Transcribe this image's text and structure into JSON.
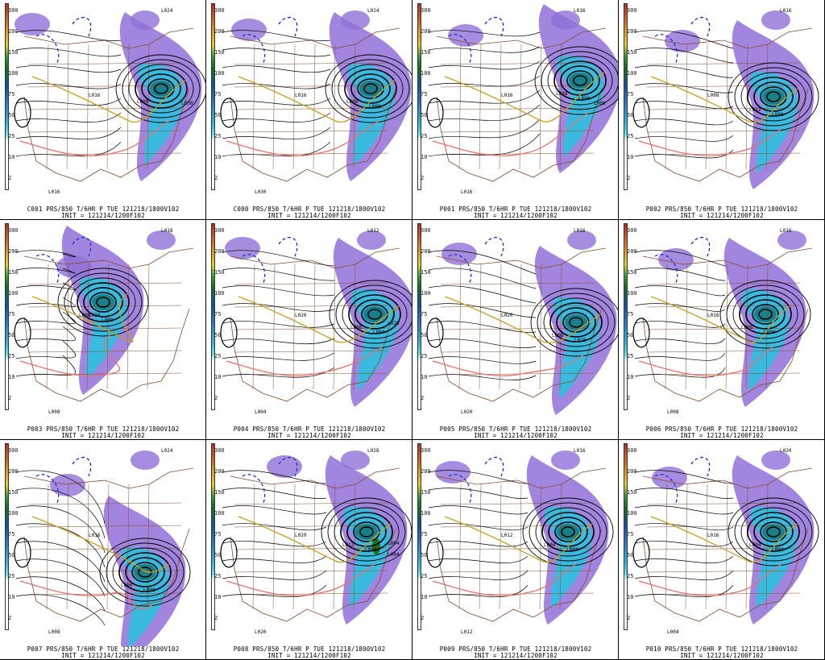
{
  "scale_ticks": [
    "300",
    "200",
    "150",
    "100",
    "75",
    "50",
    "25",
    "10",
    "2"
  ],
  "panels": [
    {
      "member": "C001",
      "title": "C001 PRS/850 T/6HR P TUE 121218/1800V102",
      "init": "INIT = 121214/1200F102",
      "lows": [
        "L008"
      ],
      "highs": [
        "L024",
        "L016",
        "L016",
        "L030"
      ]
    },
    {
      "member": "C000",
      "title": "C000 PRS/850 T/6HR P TUE 121218/1800V102",
      "init": "INIT = 121214/1200F102",
      "lows": [
        "L008",
        "L008"
      ],
      "highs": [
        "L024",
        "L016",
        "L030"
      ]
    },
    {
      "member": "P001",
      "title": "P001 PRS/850 T/6HR P TUE 121218/1800V102",
      "init": "INIT = 121214/1200F102",
      "lows": [
        "L008",
        "L000"
      ],
      "highs": [
        "L016",
        "L016",
        "L016",
        "L008"
      ]
    },
    {
      "member": "P002",
      "title": "P002 PRS/850 T/6HR P TUE 121218/1800V102",
      "init": "INIT = 121214/1200F102",
      "lows": [
        "L012",
        "L000"
      ],
      "highs": [
        "L016",
        "L008"
      ]
    },
    {
      "member": "P003",
      "title": "P003 PRS/850 T/6HR P TUE 121218/1800V102",
      "init": "INIT = 121214/1200F102",
      "lows": [
        "L000",
        "L008"
      ],
      "highs": [
        "L018",
        "L016",
        "L008"
      ]
    },
    {
      "member": "P004",
      "title": "P004 PRS/850 T/6HR P TUE 121218/1800V102",
      "init": "INIT = 121214/1200F102",
      "lows": [
        "L008",
        "L004"
      ],
      "highs": [
        "L012",
        "L020",
        "L004",
        "L020"
      ]
    },
    {
      "member": "P005",
      "title": "P005 PRS/850 T/6HR P TUE 121218/1800V102",
      "init": "INIT = 121214/1200F102",
      "lows": [
        "L008",
        "L010"
      ],
      "highs": [
        "L016",
        "L020",
        "L020"
      ]
    },
    {
      "member": "P006",
      "title": "P006 PRS/850 T/6HR P TUE 121218/1800V102",
      "init": "INIT = 121214/1200F102",
      "lows": [
        "L008",
        "L008"
      ],
      "highs": [
        "L016",
        "L016",
        "L008"
      ]
    },
    {
      "member": "P007",
      "title": "P007 PRS/850 T/6HR P TUE 121218/1800V102",
      "init": "INIT = 121214/1200F102",
      "lows": [
        "L000",
        "L008"
      ],
      "highs": [
        "L024",
        "L016",
        "L008"
      ]
    },
    {
      "member": "P008",
      "title": "P008 PRS/850 T/6HR P TUE 121218/1800V102",
      "init": "INIT = 121214/1200F102",
      "lows": [
        "L012",
        "L004",
        "L004"
      ],
      "highs": [
        "L028",
        "L020",
        "L020",
        "L004"
      ]
    },
    {
      "member": "P009",
      "title": "P009 PRS/850 T/6HR P TUE 121218/1800V102",
      "init": "INIT = 121214/1200F102",
      "lows": [
        "L004",
        "L004"
      ],
      "highs": [
        "L016",
        "L012",
        "L012"
      ]
    },
    {
      "member": "P010",
      "title": "P010 PRS/850 T/6HR P TUE 121218/1800V102",
      "init": "INIT = 121214/1200F102",
      "lows": [
        "L004",
        "L004"
      ],
      "highs": [
        "L020",
        "L016",
        "L004"
      ]
    }
  ],
  "colors": {
    "contour": "#000000",
    "temp_warm": "#e8706a",
    "temp_zero": "#c8a020",
    "temp_cold": "#1a30c8",
    "borders": "#8a4a2a",
    "precip_light": "#9070d8",
    "precip_mid": "#30c0e0",
    "precip_heavy": "#18808a",
    "precip_extreme": "#187018"
  }
}
